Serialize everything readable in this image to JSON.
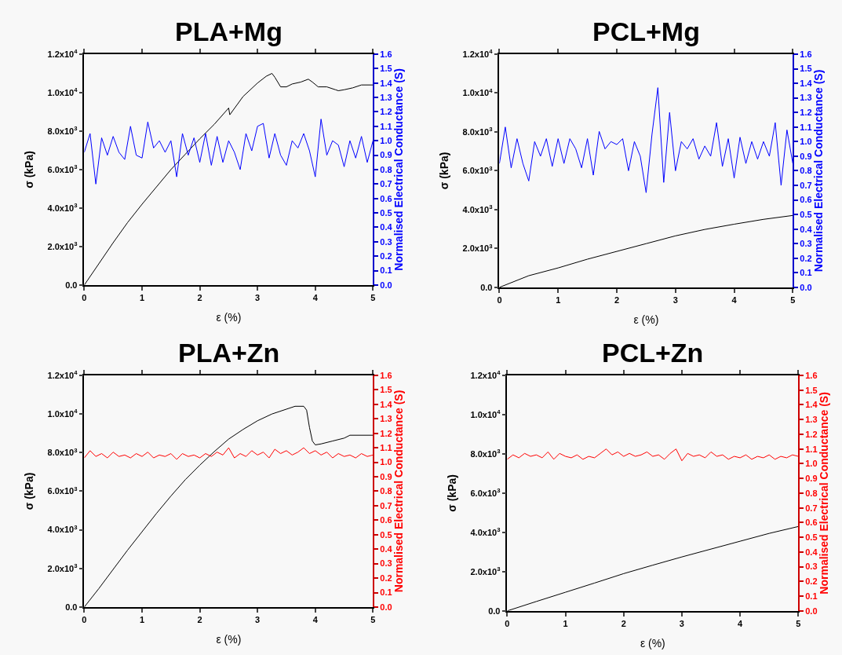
{
  "chart_data": [
    {
      "type": "line",
      "title": "PLA+Mg",
      "xlabel": "ε (%)",
      "ylabel": "σ (kPa)",
      "y2label": "Normalised Electrical Conductance (S)",
      "xlim": [
        0,
        5
      ],
      "xticks": [
        0,
        1,
        2,
        3,
        4,
        5
      ],
      "ylim": [
        0,
        12000
      ],
      "yticks": [
        {
          "value": 0,
          "label": "0.0"
        },
        {
          "value": 2000,
          "label": "2.0x10$^{3}$"
        },
        {
          "value": 4000,
          "label": "4.0x10$^{3}$"
        },
        {
          "value": 6000,
          "label": "6.0x10$^{3}$"
        },
        {
          "value": 8000,
          "label": "8.0x10$^{3}$"
        },
        {
          "value": 10000,
          "label": "1.0x10$^{4}$"
        },
        {
          "value": 12000,
          "label": "1.2x10$^{4}$"
        }
      ],
      "y2lim": [
        0,
        1.6
      ],
      "y2ticks": [
        {
          "value": 0,
          "label": "0.0"
        },
        {
          "value": 0.1,
          "label": "0.1"
        },
        {
          "value": 0.2,
          "label": "0.2"
        },
        {
          "value": 0.3,
          "label": "0.3"
        },
        {
          "value": 0.4,
          "label": "0.4"
        },
        {
          "value": 0.5,
          "label": "0.5"
        },
        {
          "value": 0.6,
          "label": "0.6"
        },
        {
          "value": 0.7,
          "label": "0.7"
        },
        {
          "value": 0.8,
          "label": "0.8"
        },
        {
          "value": 0.9,
          "label": "0.9"
        },
        {
          "value": 1.0,
          "label": "1.0"
        },
        {
          "value": 1.1,
          "label": "1.1"
        },
        {
          "value": 1.2,
          "label": "1.2"
        },
        {
          "value": 1.3,
          "label": "1.3"
        },
        {
          "value": 1.4,
          "label": "1.4"
        },
        {
          "value": 1.5,
          "label": "1.5"
        },
        {
          "value": 1.6,
          "label": "1.6"
        }
      ],
      "series": [
        {
          "color": "#0000ff",
          "axis": "y2",
          "x": [
            0,
            0.1,
            0.2,
            0.3,
            0.4,
            0.5,
            0.6,
            0.7,
            0.8,
            0.9,
            1.0,
            1.1,
            1.2,
            1.3,
            1.4,
            1.5,
            1.6,
            1.7,
            1.8,
            1.9,
            2.0,
            2.1,
            2.2,
            2.3,
            2.4,
            2.5,
            2.6,
            2.7,
            2.8,
            2.9,
            3.0,
            3.1,
            3.2,
            3.3,
            3.4,
            3.5,
            3.6,
            3.7,
            3.8,
            3.9,
            4.0,
            4.1,
            4.2,
            4.3,
            4.4,
            4.5,
            4.6,
            4.7,
            4.8,
            4.9,
            5.0
          ],
          "values": [
            0.92,
            1.05,
            0.7,
            1.02,
            0.9,
            1.03,
            0.92,
            0.87,
            1.1,
            0.9,
            0.88,
            1.13,
            0.95,
            1.0,
            0.92,
            1.0,
            0.75,
            1.05,
            0.9,
            1.02,
            0.85,
            1.05,
            0.83,
            1.03,
            0.85,
            1.0,
            0.92,
            0.8,
            1.05,
            0.93,
            1.1,
            1.12,
            0.88,
            1.05,
            0.9,
            0.83,
            1.0,
            0.95,
            1.05,
            0.93,
            0.75,
            1.15,
            0.9,
            1.0,
            0.97,
            0.82,
            1.0,
            0.88,
            1.03,
            0.85,
            1.0
          ]
        },
        {
          "color": "#000000",
          "x": [
            0,
            0.25,
            0.5,
            0.75,
            1,
            1.25,
            1.5,
            1.75,
            2,
            2.25,
            2.5,
            2.52,
            2.75,
            3,
            3.15,
            3.25,
            3.3,
            3.4,
            3.5,
            3.6,
            3.75,
            3.88,
            3.95,
            4.05,
            4.2,
            4.35,
            4.4,
            4.5,
            4.65,
            4.8,
            5
          ],
          "values": [
            0,
            1100,
            2200,
            3250,
            4200,
            5100,
            6000,
            6800,
            7600,
            8350,
            9200,
            8850,
            9800,
            10500,
            10850,
            11000,
            10800,
            10300,
            10300,
            10450,
            10550,
            10700,
            10550,
            10300,
            10300,
            10150,
            10100,
            10150,
            10250,
            10400,
            10400
          ]
        }
      ]
    },
    {
      "type": "line",
      "title": "PCL+Mg",
      "xlabel": "ε (%)",
      "ylabel": "σ (kPa)",
      "y2label": "Normalised Electrical Conductance (S)",
      "xlim": [
        0,
        5
      ],
      "xticks": [
        0,
        1,
        2,
        3,
        4,
        5
      ],
      "ylim": [
        0,
        12000
      ],
      "yticks": [
        {
          "value": 0,
          "label": "0.0"
        },
        {
          "value": 2000,
          "label": "2.0x10$^{3}$"
        },
        {
          "value": 4000,
          "label": "4.0x10$^{3}$"
        },
        {
          "value": 6000,
          "label": "6.0x10$^{3}$"
        },
        {
          "value": 8000,
          "label": "8.0x10$^{3}$"
        },
        {
          "value": 10000,
          "label": "1.0x10$^{4}$"
        },
        {
          "value": 12000,
          "label": "1.2x10$^{4}$"
        }
      ],
      "y2lim": [
        0,
        1.6
      ],
      "y2ticks": [
        {
          "value": 0,
          "label": "0.0"
        },
        {
          "value": 0.1,
          "label": "0.1"
        },
        {
          "value": 0.2,
          "label": "0.2"
        },
        {
          "value": 0.3,
          "label": "0.3"
        },
        {
          "value": 0.4,
          "label": "0.4"
        },
        {
          "value": 0.5,
          "label": "0.5"
        },
        {
          "value": 0.6,
          "label": "0.6"
        },
        {
          "value": 0.7,
          "label": "0.7"
        },
        {
          "value": 0.8,
          "label": "0.8"
        },
        {
          "value": 0.9,
          "label": "0.9"
        },
        {
          "value": 1.0,
          "label": "1.0"
        },
        {
          "value": 1.1,
          "label": "1.1"
        },
        {
          "value": 1.2,
          "label": "1.2"
        },
        {
          "value": 1.3,
          "label": "1.3"
        },
        {
          "value": 1.4,
          "label": "1.4"
        },
        {
          "value": 1.5,
          "label": "1.5"
        },
        {
          "value": 1.6,
          "label": "1.6"
        }
      ],
      "series": [
        {
          "color": "#0000ff",
          "axis": "y2",
          "x": [
            0,
            0.1,
            0.2,
            0.3,
            0.4,
            0.5,
            0.6,
            0.7,
            0.8,
            0.9,
            1.0,
            1.1,
            1.2,
            1.3,
            1.4,
            1.5,
            1.6,
            1.7,
            1.8,
            1.9,
            2.0,
            2.1,
            2.2,
            2.3,
            2.4,
            2.5,
            2.6,
            2.7,
            2.8,
            2.9,
            3.0,
            3.1,
            3.2,
            3.3,
            3.4,
            3.5,
            3.6,
            3.7,
            3.8,
            3.9,
            4.0,
            4.1,
            4.2,
            4.3,
            4.4,
            4.5,
            4.6,
            4.7,
            4.8,
            4.9,
            5.0
          ],
          "values": [
            0.85,
            1.1,
            0.82,
            1.02,
            0.85,
            0.73,
            1.0,
            0.9,
            1.02,
            0.83,
            1.02,
            0.85,
            1.02,
            0.95,
            0.82,
            1.02,
            0.77,
            1.07,
            0.95,
            1.0,
            0.98,
            1.02,
            0.8,
            1.0,
            0.9,
            0.65,
            1.05,
            1.37,
            0.72,
            1.2,
            0.8,
            1.0,
            0.95,
            1.02,
            0.88,
            0.97,
            0.9,
            1.13,
            0.83,
            1.02,
            0.75,
            1.03,
            0.85,
            1.0,
            0.88,
            1.0,
            0.9,
            1.13,
            0.7,
            1.08,
            0.85
          ]
        },
        {
          "color": "#000000",
          "x": [
            0,
            0.5,
            1,
            1.5,
            2,
            2.5,
            3,
            3.5,
            4,
            4.5,
            5
          ],
          "values": [
            0,
            600,
            1000,
            1450,
            1850,
            2250,
            2650,
            2980,
            3250,
            3500,
            3700
          ]
        }
      ]
    },
    {
      "type": "line",
      "title": "PLA+Zn",
      "xlabel": "ε (%)",
      "ylabel": "σ (kPa)",
      "y2label": "Normalised Electrical Conductance (S)",
      "xlim": [
        0,
        5
      ],
      "xticks": [
        0,
        1,
        2,
        3,
        4,
        5
      ],
      "ylim": [
        0,
        12000
      ],
      "yticks": [
        {
          "value": 0,
          "label": "0.0"
        },
        {
          "value": 2000,
          "label": "2.0x10$^{3}$"
        },
        {
          "value": 4000,
          "label": "4.0x10$^{3}$"
        },
        {
          "value": 6000,
          "label": "6.0x10$^{3}$"
        },
        {
          "value": 8000,
          "label": "8.0x10$^{3}$"
        },
        {
          "value": 10000,
          "label": "1.0x10$^{4}$"
        },
        {
          "value": 12000,
          "label": "1.2x10$^{4}$"
        }
      ],
      "y2lim": [
        0,
        1.6
      ],
      "y2ticks": [
        {
          "value": 0,
          "label": "0.0"
        },
        {
          "value": 0.1,
          "label": "0.1"
        },
        {
          "value": 0.2,
          "label": "0.2"
        },
        {
          "value": 0.3,
          "label": "0.3"
        },
        {
          "value": 0.4,
          "label": "0.4"
        },
        {
          "value": 0.5,
          "label": "0.5"
        },
        {
          "value": 0.6,
          "label": "0.6"
        },
        {
          "value": 0.7,
          "label": "0.7"
        },
        {
          "value": 0.8,
          "label": "0.8"
        },
        {
          "value": 0.9,
          "label": "0.9"
        },
        {
          "value": 1.0,
          "label": "1.0"
        },
        {
          "value": 1.1,
          "label": "1.1"
        },
        {
          "value": 1.2,
          "label": "1.2"
        },
        {
          "value": 1.3,
          "label": "1.3"
        },
        {
          "value": 1.4,
          "label": "1.4"
        },
        {
          "value": 1.5,
          "label": "1.5"
        },
        {
          "value": 1.6,
          "label": "1.6"
        }
      ],
      "series": [
        {
          "color": "#ff0000",
          "axis": "y2",
          "x": [
            0,
            0.1,
            0.2,
            0.3,
            0.4,
            0.5,
            0.6,
            0.7,
            0.8,
            0.9,
            1.0,
            1.1,
            1.2,
            1.3,
            1.4,
            1.5,
            1.6,
            1.7,
            1.8,
            1.9,
            2.0,
            2.1,
            2.2,
            2.3,
            2.4,
            2.5,
            2.6,
            2.7,
            2.8,
            2.9,
            3.0,
            3.1,
            3.2,
            3.3,
            3.4,
            3.5,
            3.6,
            3.7,
            3.8,
            3.9,
            4.0,
            4.1,
            4.2,
            4.3,
            4.4,
            4.5,
            4.6,
            4.7,
            4.8,
            4.9,
            5.0
          ],
          "values": [
            1.03,
            1.08,
            1.04,
            1.06,
            1.03,
            1.07,
            1.04,
            1.05,
            1.03,
            1.06,
            1.04,
            1.07,
            1.03,
            1.05,
            1.04,
            1.06,
            1.02,
            1.06,
            1.04,
            1.05,
            1.03,
            1.06,
            1.04,
            1.07,
            1.05,
            1.1,
            1.03,
            1.06,
            1.04,
            1.08,
            1.05,
            1.07,
            1.03,
            1.09,
            1.06,
            1.08,
            1.05,
            1.07,
            1.1,
            1.06,
            1.08,
            1.05,
            1.07,
            1.03,
            1.06,
            1.04,
            1.05,
            1.03,
            1.06,
            1.04,
            1.05
          ]
        },
        {
          "color": "#000000",
          "x": [
            0,
            0.25,
            0.5,
            0.75,
            1,
            1.25,
            1.5,
            1.75,
            2,
            2.25,
            2.5,
            2.75,
            3,
            3.25,
            3.5,
            3.65,
            3.8,
            3.85,
            3.9,
            3.95,
            4.0,
            4.1,
            4.3,
            4.5,
            4.6,
            5
          ],
          "values": [
            0,
            950,
            1950,
            2950,
            3900,
            4850,
            5750,
            6600,
            7350,
            8050,
            8700,
            9200,
            9650,
            10000,
            10250,
            10400,
            10400,
            10200,
            9300,
            8600,
            8400,
            8450,
            8600,
            8750,
            8900,
            8900
          ]
        }
      ]
    },
    {
      "type": "line",
      "title": "PCL+Zn",
      "xlabel": "ε (%)",
      "ylabel": "σ (kPa)",
      "y2label": "Normalised Electrical Conductance (S)",
      "xlim": [
        0,
        5
      ],
      "xticks": [
        0,
        1,
        2,
        3,
        4,
        5
      ],
      "ylim": [
        0,
        12000
      ],
      "yticks": [
        {
          "value": 0,
          "label": "0.0"
        },
        {
          "value": 2000,
          "label": "2.0x10$^{3}$"
        },
        {
          "value": 4000,
          "label": "4.0x10$^{3}$"
        },
        {
          "value": 6000,
          "label": "6.0x10$^{3}$"
        },
        {
          "value": 8000,
          "label": "8.0x10$^{3}$"
        },
        {
          "value": 10000,
          "label": "1.0x10$^{4}$"
        },
        {
          "value": 12000,
          "label": "1.2x10$^{4}$"
        }
      ],
      "y2lim": [
        0,
        1.6
      ],
      "y2ticks": [
        {
          "value": 0,
          "label": "0.0"
        },
        {
          "value": 0.1,
          "label": "0.1"
        },
        {
          "value": 0.2,
          "label": "0.2"
        },
        {
          "value": 0.3,
          "label": "0.3"
        },
        {
          "value": 0.4,
          "label": "0.4"
        },
        {
          "value": 0.5,
          "label": "0.5"
        },
        {
          "value": 0.6,
          "label": "0.6"
        },
        {
          "value": 0.7,
          "label": "0.7"
        },
        {
          "value": 0.8,
          "label": "0.8"
        },
        {
          "value": 0.9,
          "label": "0.9"
        },
        {
          "value": 1.0,
          "label": "1.0"
        },
        {
          "value": 1.1,
          "label": "1.1"
        },
        {
          "value": 1.2,
          "label": "1.2"
        },
        {
          "value": 1.3,
          "label": "1.3"
        },
        {
          "value": 1.4,
          "label": "1.4"
        },
        {
          "value": 1.5,
          "label": "1.5"
        },
        {
          "value": 1.6,
          "label": "1.6"
        }
      ],
      "series": [
        {
          "color": "#ff0000",
          "axis": "y2",
          "x": [
            0,
            0.1,
            0.2,
            0.3,
            0.4,
            0.5,
            0.6,
            0.7,
            0.8,
            0.9,
            1.0,
            1.1,
            1.2,
            1.3,
            1.4,
            1.5,
            1.6,
            1.7,
            1.8,
            1.9,
            2.0,
            2.1,
            2.2,
            2.3,
            2.4,
            2.5,
            2.6,
            2.7,
            2.8,
            2.9,
            3.0,
            3.1,
            3.2,
            3.3,
            3.4,
            3.5,
            3.6,
            3.7,
            3.8,
            3.9,
            4.0,
            4.1,
            4.2,
            4.3,
            4.4,
            4.5,
            4.6,
            4.7,
            4.8,
            4.9,
            5.0
          ],
          "values": [
            1.03,
            1.06,
            1.04,
            1.07,
            1.05,
            1.06,
            1.04,
            1.08,
            1.03,
            1.07,
            1.05,
            1.04,
            1.06,
            1.03,
            1.05,
            1.04,
            1.07,
            1.1,
            1.06,
            1.08,
            1.05,
            1.07,
            1.05,
            1.06,
            1.08,
            1.05,
            1.06,
            1.03,
            1.07,
            1.1,
            1.02,
            1.07,
            1.05,
            1.06,
            1.04,
            1.08,
            1.05,
            1.06,
            1.03,
            1.05,
            1.04,
            1.06,
            1.03,
            1.05,
            1.04,
            1.06,
            1.03,
            1.05,
            1.04,
            1.06,
            1.05
          ]
        },
        {
          "color": "#000000",
          "x": [
            0,
            0.5,
            1,
            1.5,
            2,
            2.5,
            3,
            3.5,
            4,
            4.5,
            5
          ],
          "values": [
            0,
            480,
            950,
            1420,
            1900,
            2330,
            2750,
            3150,
            3550,
            3950,
            4300
          ]
        }
      ]
    }
  ]
}
